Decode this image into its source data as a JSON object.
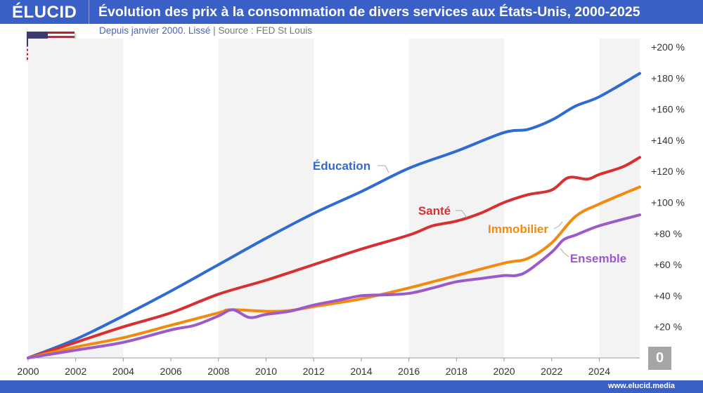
{
  "header": {
    "logo": "ÉLUCID",
    "title": "Évolution des prix à la consommation de divers services aux États-Unis, 2000-2025",
    "subtitle": "Depuis janvier 2000. Lissé",
    "source": "Source : FED St Louis",
    "separator": "|"
  },
  "footer": {
    "url": "www.elucid.media",
    "zero_badge": "0"
  },
  "flag": "us-flag-icon",
  "chart_data": {
    "type": "line",
    "title": "Évolution des prix à la consommation de divers services aux États-Unis, 2000-2025",
    "xlim": [
      2000,
      2025.7
    ],
    "ylim": [
      0,
      200
    ],
    "x_ticks": [
      "2000",
      "2002",
      "2004",
      "2006",
      "2008",
      "2010",
      "2012",
      "2014",
      "2016",
      "2018",
      "2020",
      "2022",
      "2024"
    ],
    "y_ticks": [
      "+20 %",
      "+40 %",
      "+60 %",
      "+80 %",
      "+100 %",
      "+120 %",
      "+140 %",
      "+160 %",
      "+180 %",
      "+200 %"
    ],
    "y_axis_side": "right",
    "grid": false,
    "background_bands": "alternating 4-year gray bands",
    "series": [
      {
        "name": "Éducation",
        "color": "#2f6bd0",
        "points": [
          [
            2000,
            0
          ],
          [
            2002,
            12
          ],
          [
            2004,
            27
          ],
          [
            2006,
            43
          ],
          [
            2008,
            60
          ],
          [
            2010,
            77
          ],
          [
            2012,
            93
          ],
          [
            2014,
            107
          ],
          [
            2016,
            122
          ],
          [
            2018,
            133
          ],
          [
            2020,
            145
          ],
          [
            2021,
            147
          ],
          [
            2022,
            153
          ],
          [
            2023,
            162
          ],
          [
            2024,
            168
          ],
          [
            2025.7,
            183
          ]
        ]
      },
      {
        "name": "Santé",
        "color": "#d63031",
        "points": [
          [
            2000,
            0
          ],
          [
            2002,
            10
          ],
          [
            2004,
            20
          ],
          [
            2006,
            29
          ],
          [
            2008,
            41
          ],
          [
            2010,
            50
          ],
          [
            2012,
            60
          ],
          [
            2014,
            70
          ],
          [
            2016,
            79
          ],
          [
            2017,
            85
          ],
          [
            2018,
            88
          ],
          [
            2019,
            93
          ],
          [
            2020,
            100
          ],
          [
            2021,
            105
          ],
          [
            2022,
            108
          ],
          [
            2022.7,
            116
          ],
          [
            2023.5,
            115
          ],
          [
            2024,
            118
          ],
          [
            2025,
            123
          ],
          [
            2025.7,
            129
          ]
        ]
      },
      {
        "name": "Immobilier",
        "color": "#f28a0f",
        "points": [
          [
            2000,
            0
          ],
          [
            2002,
            7
          ],
          [
            2004,
            13
          ],
          [
            2006,
            21
          ],
          [
            2008,
            29
          ],
          [
            2008.5,
            31
          ],
          [
            2010,
            30
          ],
          [
            2011,
            30.5
          ],
          [
            2012,
            33
          ],
          [
            2014,
            38
          ],
          [
            2016,
            45
          ],
          [
            2018,
            53
          ],
          [
            2020,
            61
          ],
          [
            2021,
            64
          ],
          [
            2022,
            74
          ],
          [
            2023,
            91
          ],
          [
            2024,
            99
          ],
          [
            2025.7,
            110
          ]
        ]
      },
      {
        "name": "Ensemble",
        "color": "#9b59c9",
        "points": [
          [
            2000,
            0
          ],
          [
            2002,
            5
          ],
          [
            2004,
            10
          ],
          [
            2006,
            18
          ],
          [
            2007,
            21
          ],
          [
            2008,
            27
          ],
          [
            2008.6,
            31
          ],
          [
            2009.3,
            26
          ],
          [
            2010,
            28
          ],
          [
            2011,
            30
          ],
          [
            2012,
            34
          ],
          [
            2013,
            37
          ],
          [
            2014,
            40
          ],
          [
            2015,
            40.6
          ],
          [
            2016,
            41.5
          ],
          [
            2017,
            45
          ],
          [
            2018,
            49
          ],
          [
            2019,
            51
          ],
          [
            2020,
            53
          ],
          [
            2020.5,
            53
          ],
          [
            2021,
            56
          ],
          [
            2022,
            68
          ],
          [
            2022.5,
            76
          ],
          [
            2023,
            79
          ],
          [
            2024,
            85
          ],
          [
            2025.7,
            92
          ]
        ]
      }
    ]
  }
}
